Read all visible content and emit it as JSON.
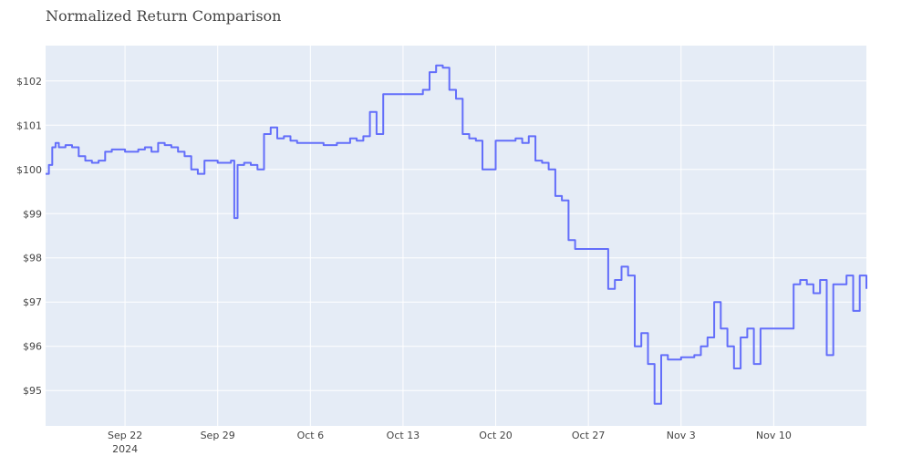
{
  "chart_data": {
    "type": "line",
    "title": "Normalized Return Comparison",
    "xlabel": "",
    "ylabel": "",
    "grid": true,
    "legend": "none",
    "ylim": [
      94.2,
      102.8
    ],
    "xlim": [
      "2024-09-16",
      "2024-11-17"
    ],
    "x_ticks": [
      {
        "date": "2024-09-22",
        "label": "Sep 22",
        "sublabel": "2024"
      },
      {
        "date": "2024-09-29",
        "label": "Sep 29"
      },
      {
        "date": "2024-10-06",
        "label": "Oct 6"
      },
      {
        "date": "2024-10-13",
        "label": "Oct 13"
      },
      {
        "date": "2024-10-20",
        "label": "Oct 20"
      },
      {
        "date": "2024-10-27",
        "label": "Oct 27"
      },
      {
        "date": "2024-11-03",
        "label": "Nov 3"
      },
      {
        "date": "2024-11-10",
        "label": "Nov 10"
      }
    ],
    "y_ticks": [
      {
        "value": 95,
        "label": "$95"
      },
      {
        "value": 96,
        "label": "$96"
      },
      {
        "value": 97,
        "label": "$97"
      },
      {
        "value": 98,
        "label": "$98"
      },
      {
        "value": 99,
        "label": "$99"
      },
      {
        "value": 100,
        "label": "$100"
      },
      {
        "value": 101,
        "label": "$101"
      },
      {
        "value": 102,
        "label": "$102"
      }
    ],
    "colors": {
      "line": "#636efa",
      "plot_bg": "#e5ecf6",
      "grid": "#ffffff"
    },
    "series": [
      {
        "x": [
          "2024-09-16 00:00",
          "2024-09-16 06:00",
          "2024-09-16 12:00",
          "2024-09-16 18:00",
          "2024-09-17 00:00",
          "2024-09-17 12:00",
          "2024-09-18 00:00",
          "2024-09-18 12:00",
          "2024-09-19 00:00",
          "2024-09-19 12:00",
          "2024-09-20 00:00",
          "2024-09-20 12:00",
          "2024-09-21 00:00",
          "2024-09-22 00:00",
          "2024-09-23 00:00",
          "2024-09-23 12:00",
          "2024-09-24 00:00",
          "2024-09-24 12:00",
          "2024-09-25 00:00",
          "2024-09-25 12:00",
          "2024-09-26 00:00",
          "2024-09-26 12:00",
          "2024-09-27 00:00",
          "2024-09-27 12:00",
          "2024-09-28 00:00",
          "2024-09-28 12:00",
          "2024-09-29 00:00",
          "2024-09-30 00:00",
          "2024-09-30 06:00",
          "2024-09-30 12:00",
          "2024-10-01 00:00",
          "2024-10-01 12:00",
          "2024-10-02 00:00",
          "2024-10-02 12:00",
          "2024-10-03 00:00",
          "2024-10-03 12:00",
          "2024-10-04 00:00",
          "2024-10-04 12:00",
          "2024-10-05 00:00",
          "2024-10-06 00:00",
          "2024-10-07 00:00",
          "2024-10-07 12:00",
          "2024-10-08 00:00",
          "2024-10-08 12:00",
          "2024-10-09 00:00",
          "2024-10-09 12:00",
          "2024-10-10 00:00",
          "2024-10-10 12:00",
          "2024-10-11 00:00",
          "2024-10-11 12:00",
          "2024-10-12 00:00",
          "2024-10-13 00:00",
          "2024-10-14 00:00",
          "2024-10-14 12:00",
          "2024-10-15 00:00",
          "2024-10-15 12:00",
          "2024-10-16 00:00",
          "2024-10-16 12:00",
          "2024-10-17 00:00",
          "2024-10-17 12:00",
          "2024-10-18 00:00",
          "2024-10-18 12:00",
          "2024-10-19 00:00",
          "2024-10-20 00:00",
          "2024-10-21 00:00",
          "2024-10-21 12:00",
          "2024-10-22 00:00",
          "2024-10-22 12:00",
          "2024-10-23 00:00",
          "2024-10-23 12:00",
          "2024-10-24 00:00",
          "2024-10-24 12:00",
          "2024-10-25 00:00",
          "2024-10-25 12:00",
          "2024-10-26 00:00",
          "2024-10-27 00:00",
          "2024-10-28 00:00",
          "2024-10-28 12:00",
          "2024-10-29 00:00",
          "2024-10-29 12:00",
          "2024-10-30 00:00",
          "2024-10-30 12:00",
          "2024-10-31 00:00",
          "2024-10-31 12:00",
          "2024-11-01 00:00",
          "2024-11-01 12:00",
          "2024-11-02 00:00",
          "2024-11-03 00:00",
          "2024-11-04 00:00",
          "2024-11-04 12:00",
          "2024-11-05 00:00",
          "2024-11-05 12:00",
          "2024-11-06 00:00",
          "2024-11-06 12:00",
          "2024-11-07 00:00",
          "2024-11-07 12:00",
          "2024-11-08 00:00",
          "2024-11-08 12:00",
          "2024-11-09 00:00",
          "2024-11-10 00:00",
          "2024-11-11 00:00",
          "2024-11-11 12:00",
          "2024-11-12 00:00",
          "2024-11-12 12:00",
          "2024-11-13 00:00",
          "2024-11-13 12:00",
          "2024-11-14 00:00",
          "2024-11-14 12:00",
          "2024-11-15 00:00",
          "2024-11-15 12:00",
          "2024-11-16 00:00",
          "2024-11-16 12:00",
          "2024-11-17 00:00"
        ],
        "values": [
          99.9,
          100.1,
          100.5,
          100.6,
          100.5,
          100.55,
          100.5,
          100.3,
          100.2,
          100.15,
          100.2,
          100.4,
          100.45,
          100.4,
          100.45,
          100.5,
          100.4,
          100.6,
          100.55,
          100.5,
          100.4,
          100.3,
          100.0,
          99.9,
          100.2,
          100.2,
          100.15,
          100.2,
          98.9,
          100.1,
          100.15,
          100.1,
          100.0,
          100.8,
          100.95,
          100.7,
          100.75,
          100.65,
          100.6,
          100.6,
          100.55,
          100.55,
          100.6,
          100.6,
          100.7,
          100.65,
          100.75,
          101.3,
          100.8,
          101.7,
          101.7,
          101.7,
          101.7,
          101.8,
          102.2,
          102.35,
          102.3,
          101.8,
          101.6,
          100.8,
          100.7,
          100.65,
          100.0,
          100.65,
          100.65,
          100.7,
          100.6,
          100.75,
          100.2,
          100.15,
          100.0,
          99.4,
          99.3,
          98.4,
          98.2,
          98.2,
          98.2,
          97.3,
          97.5,
          97.8,
          97.6,
          96.0,
          96.3,
          95.6,
          94.7,
          95.8,
          95.7,
          95.75,
          95.8,
          96.0,
          96.2,
          97.0,
          96.4,
          96.0,
          95.5,
          96.2,
          96.4,
          95.6,
          96.4,
          96.4,
          96.4,
          97.4,
          97.5,
          97.4,
          97.2,
          97.5,
          95.8,
          97.4,
          97.4,
          97.6,
          96.8,
          97.6,
          97.3
        ]
      }
    ]
  }
}
